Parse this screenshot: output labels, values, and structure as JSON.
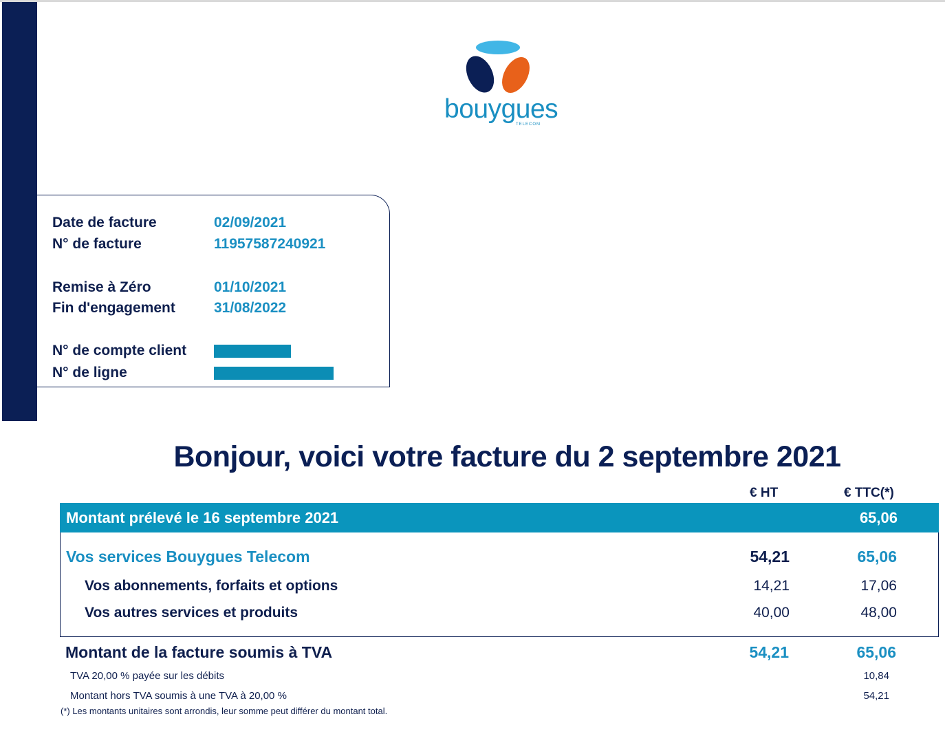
{
  "brand": {
    "name": "bouygues",
    "sub": "TELECOM",
    "colors": {
      "navy": "#0b1f55",
      "teal": "#1a8fc2",
      "orange": "#e8611a",
      "sky": "#41b6e6"
    }
  },
  "info": {
    "invoice_date_label": "Date de facture",
    "invoice_date": "02/09/2021",
    "invoice_number_label": "N° de facture",
    "invoice_number": "11957587240921",
    "reset_label": "Remise à Zéro",
    "reset_date": "01/10/2021",
    "commitment_end_label": "Fin d'engagement",
    "commitment_end": "31/08/2022",
    "account_label": "N° de compte client",
    "line_label": "N° de ligne"
  },
  "headline": "Bonjour, voici votre facture du 2 septembre 2021",
  "columns": {
    "ht": "€ HT",
    "ttc": "€ TTC(*)"
  },
  "amount_debited": {
    "label": "Montant prélevé le 16 septembre 2021",
    "ttc": "65,06"
  },
  "services": {
    "label": "Vos services Bouygues Telecom",
    "ht": "54,21",
    "ttc": "65,06",
    "items": [
      {
        "label": "Vos abonnements, forfaits et options",
        "ht": "14,21",
        "ttc": "17,06"
      },
      {
        "label": "Vos autres services et produits",
        "ht": "40,00",
        "ttc": "48,00"
      }
    ]
  },
  "vat_total": {
    "label": "Montant de la facture soumis à TVA",
    "ht": "54,21",
    "ttc": "65,06"
  },
  "vat_lines": [
    {
      "label": "TVA 20,00 % payée sur les débits",
      "ttc": "10,84"
    },
    {
      "label": "Montant hors TVA soumis à une TVA à 20,00 %",
      "ttc": "54,21"
    }
  ],
  "footnote": "(*) Les montants unitaires sont arrondis, leur somme peut différer du montant total."
}
